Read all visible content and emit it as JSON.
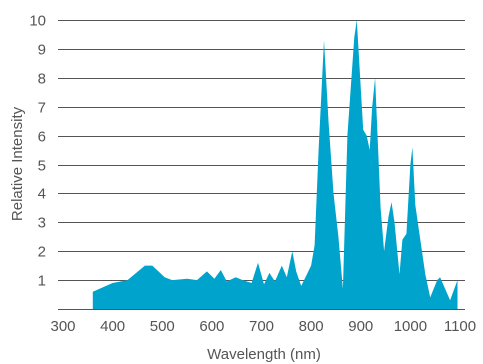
{
  "chart_data": {
    "type": "area",
    "title": "",
    "xlabel": "Wavelength (nm)",
    "ylabel": "Relative Intensity",
    "xlim": [
      300,
      1100
    ],
    "ylim": [
      0,
      10
    ],
    "x_ticks": [
      300,
      400,
      500,
      600,
      700,
      800,
      900,
      1000,
      1100
    ],
    "y_ticks": [
      1,
      2,
      3,
      4,
      5,
      6,
      7,
      8,
      9,
      10
    ],
    "grid": "horizontal",
    "fill_color": "#00a3cc",
    "series": [
      {
        "points": [
          [
            360,
            0.6
          ],
          [
            400,
            0.9
          ],
          [
            430,
            1.0
          ],
          [
            465,
            1.5
          ],
          [
            480,
            1.5
          ],
          [
            505,
            1.1
          ],
          [
            520,
            1.0
          ],
          [
            550,
            1.05
          ],
          [
            570,
            1.0
          ],
          [
            590,
            1.3
          ],
          [
            605,
            1.05
          ],
          [
            618,
            1.35
          ],
          [
            630,
            0.95
          ],
          [
            648,
            1.1
          ],
          [
            662,
            1.0
          ],
          [
            680,
            0.9
          ],
          [
            693,
            1.6
          ],
          [
            705,
            0.85
          ],
          [
            716,
            1.25
          ],
          [
            727,
            0.95
          ],
          [
            741,
            1.5
          ],
          [
            751,
            1.1
          ],
          [
            762,
            2.0
          ],
          [
            770,
            1.3
          ],
          [
            780,
            0.8
          ],
          [
            790,
            1.15
          ],
          [
            800,
            1.5
          ],
          [
            807,
            2.2
          ],
          [
            815,
            5.5
          ],
          [
            826,
            9.3
          ],
          [
            835,
            6.5
          ],
          [
            845,
            4.0
          ],
          [
            855,
            2.5
          ],
          [
            864,
            0.7
          ],
          [
            873,
            6.0
          ],
          [
            887,
            9.4
          ],
          [
            892,
            10.0
          ],
          [
            905,
            6.2
          ],
          [
            912,
            6.0
          ],
          [
            918,
            5.5
          ],
          [
            923,
            7.0
          ],
          [
            929,
            8.0
          ],
          [
            940,
            3.5
          ],
          [
            947,
            2.0
          ],
          [
            956,
            3.2
          ],
          [
            962,
            3.7
          ],
          [
            968,
            3.0
          ],
          [
            978,
            1.2
          ],
          [
            984,
            2.4
          ],
          [
            992,
            2.6
          ],
          [
            1000,
            5.0
          ],
          [
            1004,
            5.6
          ],
          [
            1010,
            3.6
          ],
          [
            1030,
            1.2
          ],
          [
            1040,
            0.4
          ],
          [
            1054,
            1.0
          ],
          [
            1060,
            1.1
          ],
          [
            1070,
            0.7
          ],
          [
            1080,
            0.3
          ],
          [
            1095,
            1.0
          ]
        ]
      }
    ]
  }
}
